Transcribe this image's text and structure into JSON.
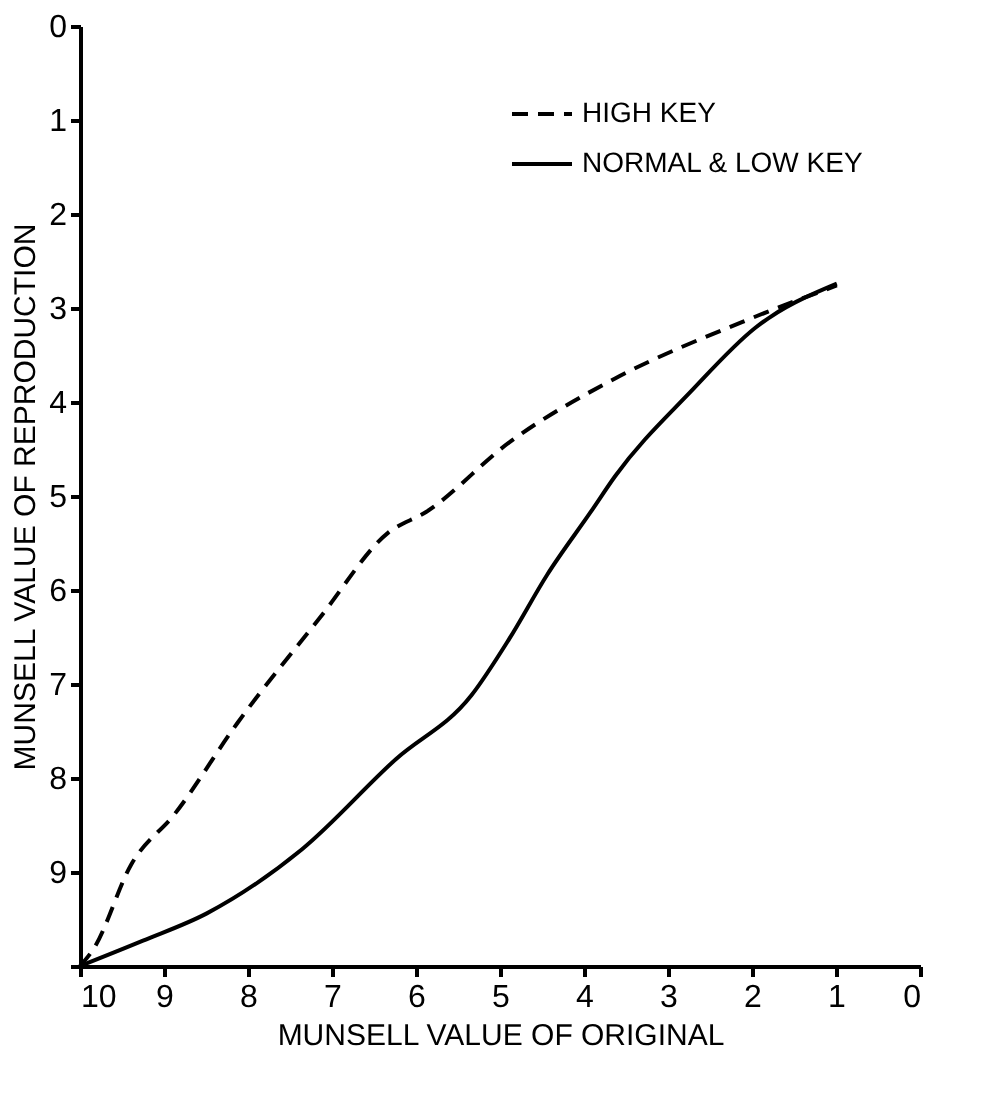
{
  "chart_data": {
    "type": "line",
    "xlabel": "MUNSELL VALUE OF ORIGINAL",
    "ylabel": "MUNSELL VALUE OF REPRODUCTION",
    "xlim": [
      10,
      0
    ],
    "ylim": [
      10,
      0
    ],
    "xticks": [
      10,
      9,
      8,
      7,
      6,
      5,
      4,
      3,
      2,
      1,
      0
    ],
    "yticks": [
      0,
      1,
      2,
      3,
      4,
      5,
      6,
      7,
      8,
      9,
      {
        "value": 10,
        "label": null
      }
    ],
    "grid": false,
    "legend": "top right",
    "marker": "none",
    "series": [
      {
        "name": "HIGH KEY",
        "color": "#000000",
        "line_style": "dashed",
        "x": [
          10,
          9.84,
          9.39,
          8.87,
          8.13,
          7.14,
          6.33,
          5.88,
          4.89,
          3.63,
          2.12,
          0.99
        ],
        "values": [
          10,
          9.82,
          8.92,
          8.38,
          7.42,
          6.29,
          5.39,
          5.17,
          4.43,
          3.75,
          3.15,
          2.76
        ]
      },
      {
        "name": "NORMAL & LOW KEY",
        "color": "#000000",
        "line_style": "solid",
        "x": [
          10,
          9.25,
          8.49,
          7.36,
          6.24,
          5.34,
          4.89,
          4.44,
          3.92,
          3.63,
          2.73,
          1.96,
          0.99
        ],
        "values": [
          10,
          9.73,
          9.44,
          8.76,
          7.8,
          7.12,
          6.52,
          5.84,
          5.17,
          4.79,
          3.89,
          3.21,
          2.74
        ]
      }
    ]
  }
}
